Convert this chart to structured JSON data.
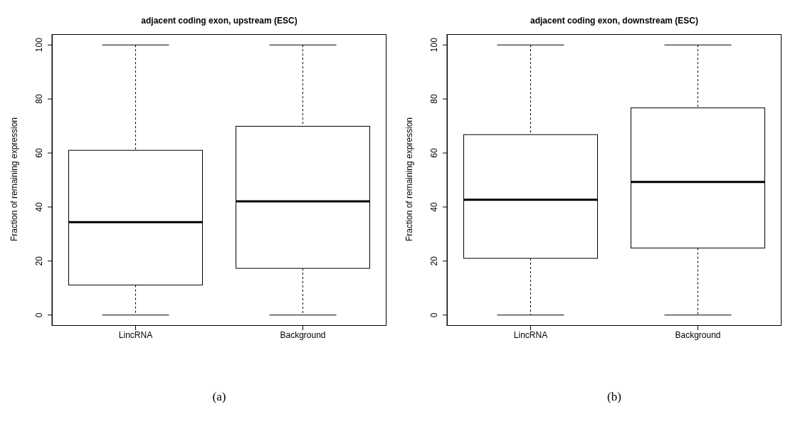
{
  "chart_data": [
    {
      "type": "box",
      "title": "adjacent coding exon, upstream (ESC)",
      "ylabel": "Fraction of remaining expression",
      "categories": [
        "LincRNA",
        "Background"
      ],
      "boxes": [
        {
          "low": 0,
          "q1": 11.1,
          "median": 34.4,
          "q3": 61,
          "high": 100
        },
        {
          "low": 0,
          "q1": 17.3,
          "median": 42.1,
          "q3": 69.9,
          "high": 100
        }
      ],
      "ylim": [
        -4,
        104
      ],
      "yticks": [
        0,
        20,
        40,
        60,
        80,
        100
      ],
      "annotations": [
        "(a)"
      ]
    },
    {
      "type": "box",
      "title": "adjacent coding exon, downstream (ESC)",
      "ylabel": "Fraction of remaining expression",
      "categories": [
        "LincRNA",
        "Background"
      ],
      "boxes": [
        {
          "low": 0,
          "q1": 21,
          "median": 42.7,
          "q3": 66.8,
          "high": 100
        },
        {
          "low": 0,
          "q1": 24.8,
          "median": 49.3,
          "q3": 76.7,
          "high": 100
        }
      ],
      "ylim": [
        -4,
        104
      ],
      "yticks": [
        0,
        20,
        40,
        60,
        80,
        100
      ],
      "annotations": [
        "(b)"
      ]
    }
  ]
}
